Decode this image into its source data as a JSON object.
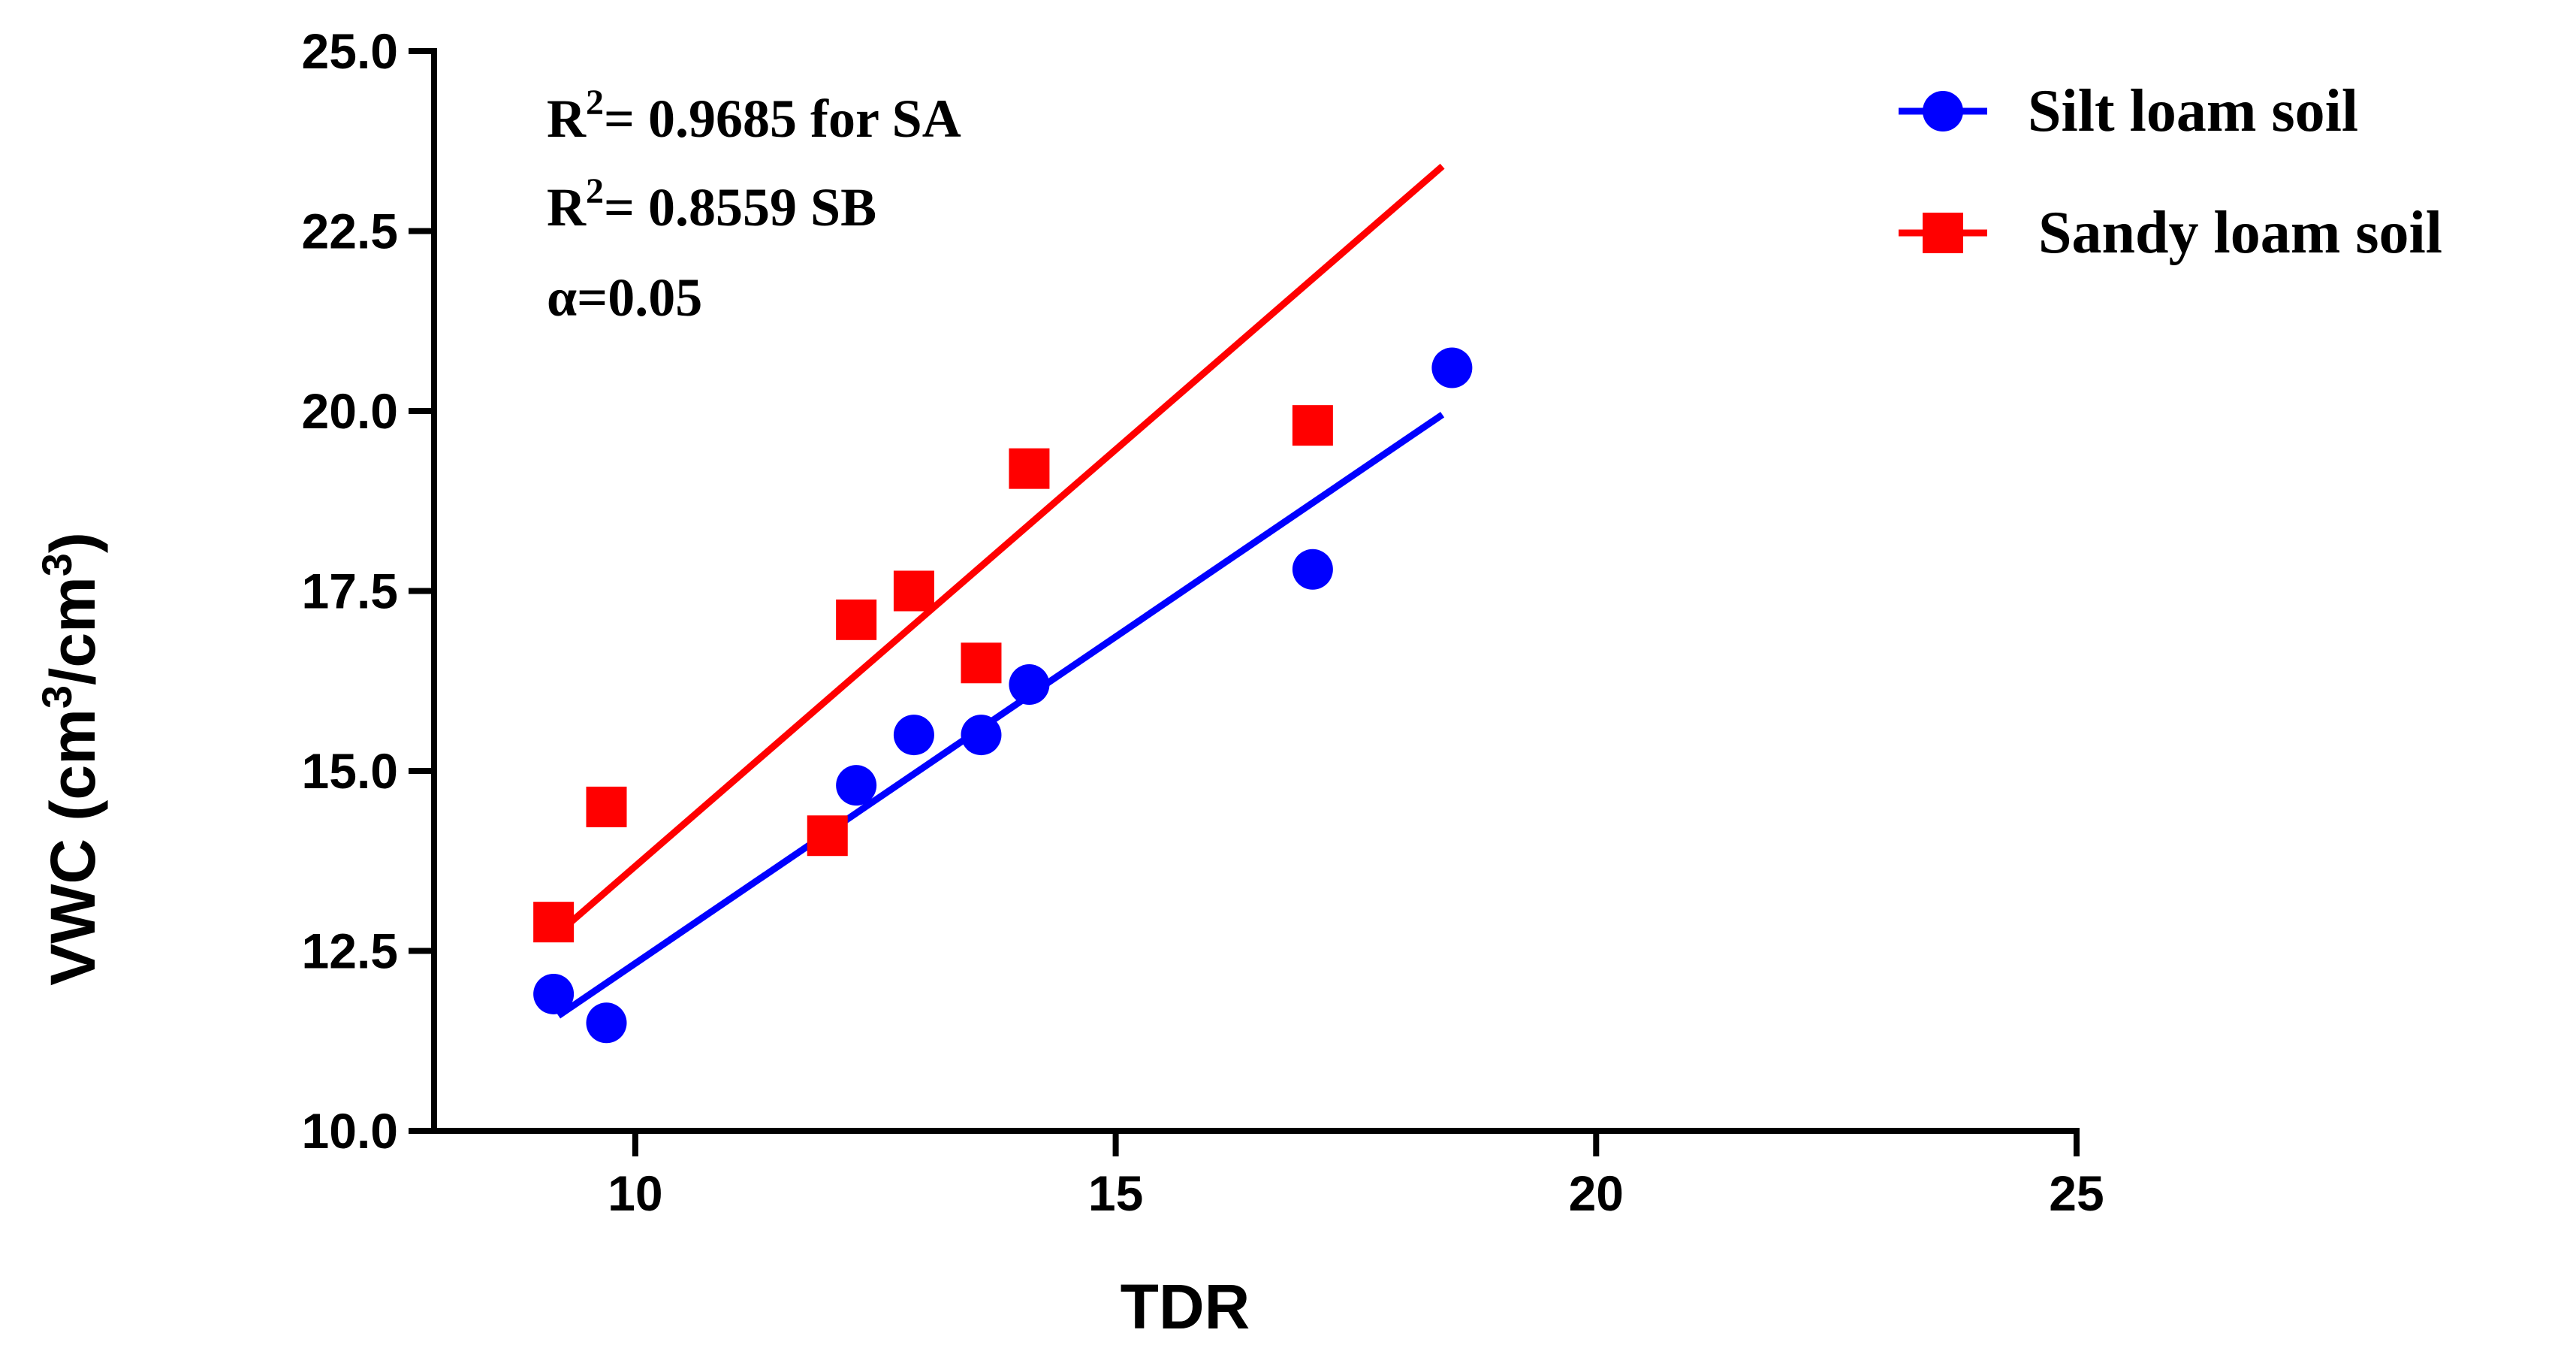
{
  "chart_data": {
    "type": "scatter",
    "xlabel": "TDR",
    "ylabel": "VWC (cm3/cm3)",
    "ylabel_parts": {
      "pre": "VWC (cm",
      "sup1": "3",
      "mid": "/cm",
      "sup2": "3",
      "post": ")"
    },
    "xlim": [
      8,
      25
    ],
    "ylim": [
      10,
      25
    ],
    "xticks": [
      10,
      15,
      20,
      25
    ],
    "xtick_labels": [
      "10",
      "15",
      "20",
      "25"
    ],
    "yticks": [
      10,
      12.5,
      15,
      17.5,
      20,
      22.5,
      25
    ],
    "ytick_labels": [
      "10.0",
      "12.5",
      "15.0",
      "17.5",
      "20.0",
      "22.5",
      "25.0"
    ],
    "grid": false,
    "legend_position": "top-right",
    "annotations": [
      {
        "pre": "R",
        "sup": "2",
        "post": "= 0.9685 for SA"
      },
      {
        "pre": "R",
        "sup": "2",
        "post": "= 0.8559 SB"
      },
      {
        "pre": "α=0.05",
        "sup": "",
        "post": ""
      }
    ],
    "series": [
      {
        "name": "Silt loam soil",
        "color": "#0000ff",
        "marker": "circle",
        "x": [
          9.15,
          9.7,
          12.3,
          12.9,
          13.6,
          14.1,
          17.05,
          18.5
        ],
        "y": [
          11.9,
          11.5,
          14.8,
          15.5,
          15.5,
          16.2,
          17.8,
          20.6
        ],
        "fit": {
          "x": [
            9.2,
            18.4
          ],
          "y": [
            11.6,
            19.95
          ]
        }
      },
      {
        "name": "Sandy loam soil",
        "color": "#ff0000",
        "marker": "square",
        "x": [
          9.15,
          9.7,
          12.0,
          12.3,
          12.9,
          13.6,
          14.1,
          17.05
        ],
        "y": [
          12.9,
          14.5,
          14.1,
          17.1,
          17.5,
          16.5,
          19.2,
          19.8
        ],
        "fit": {
          "x": [
            9.2,
            18.4
          ],
          "y": [
            12.75,
            23.4
          ]
        }
      }
    ]
  }
}
